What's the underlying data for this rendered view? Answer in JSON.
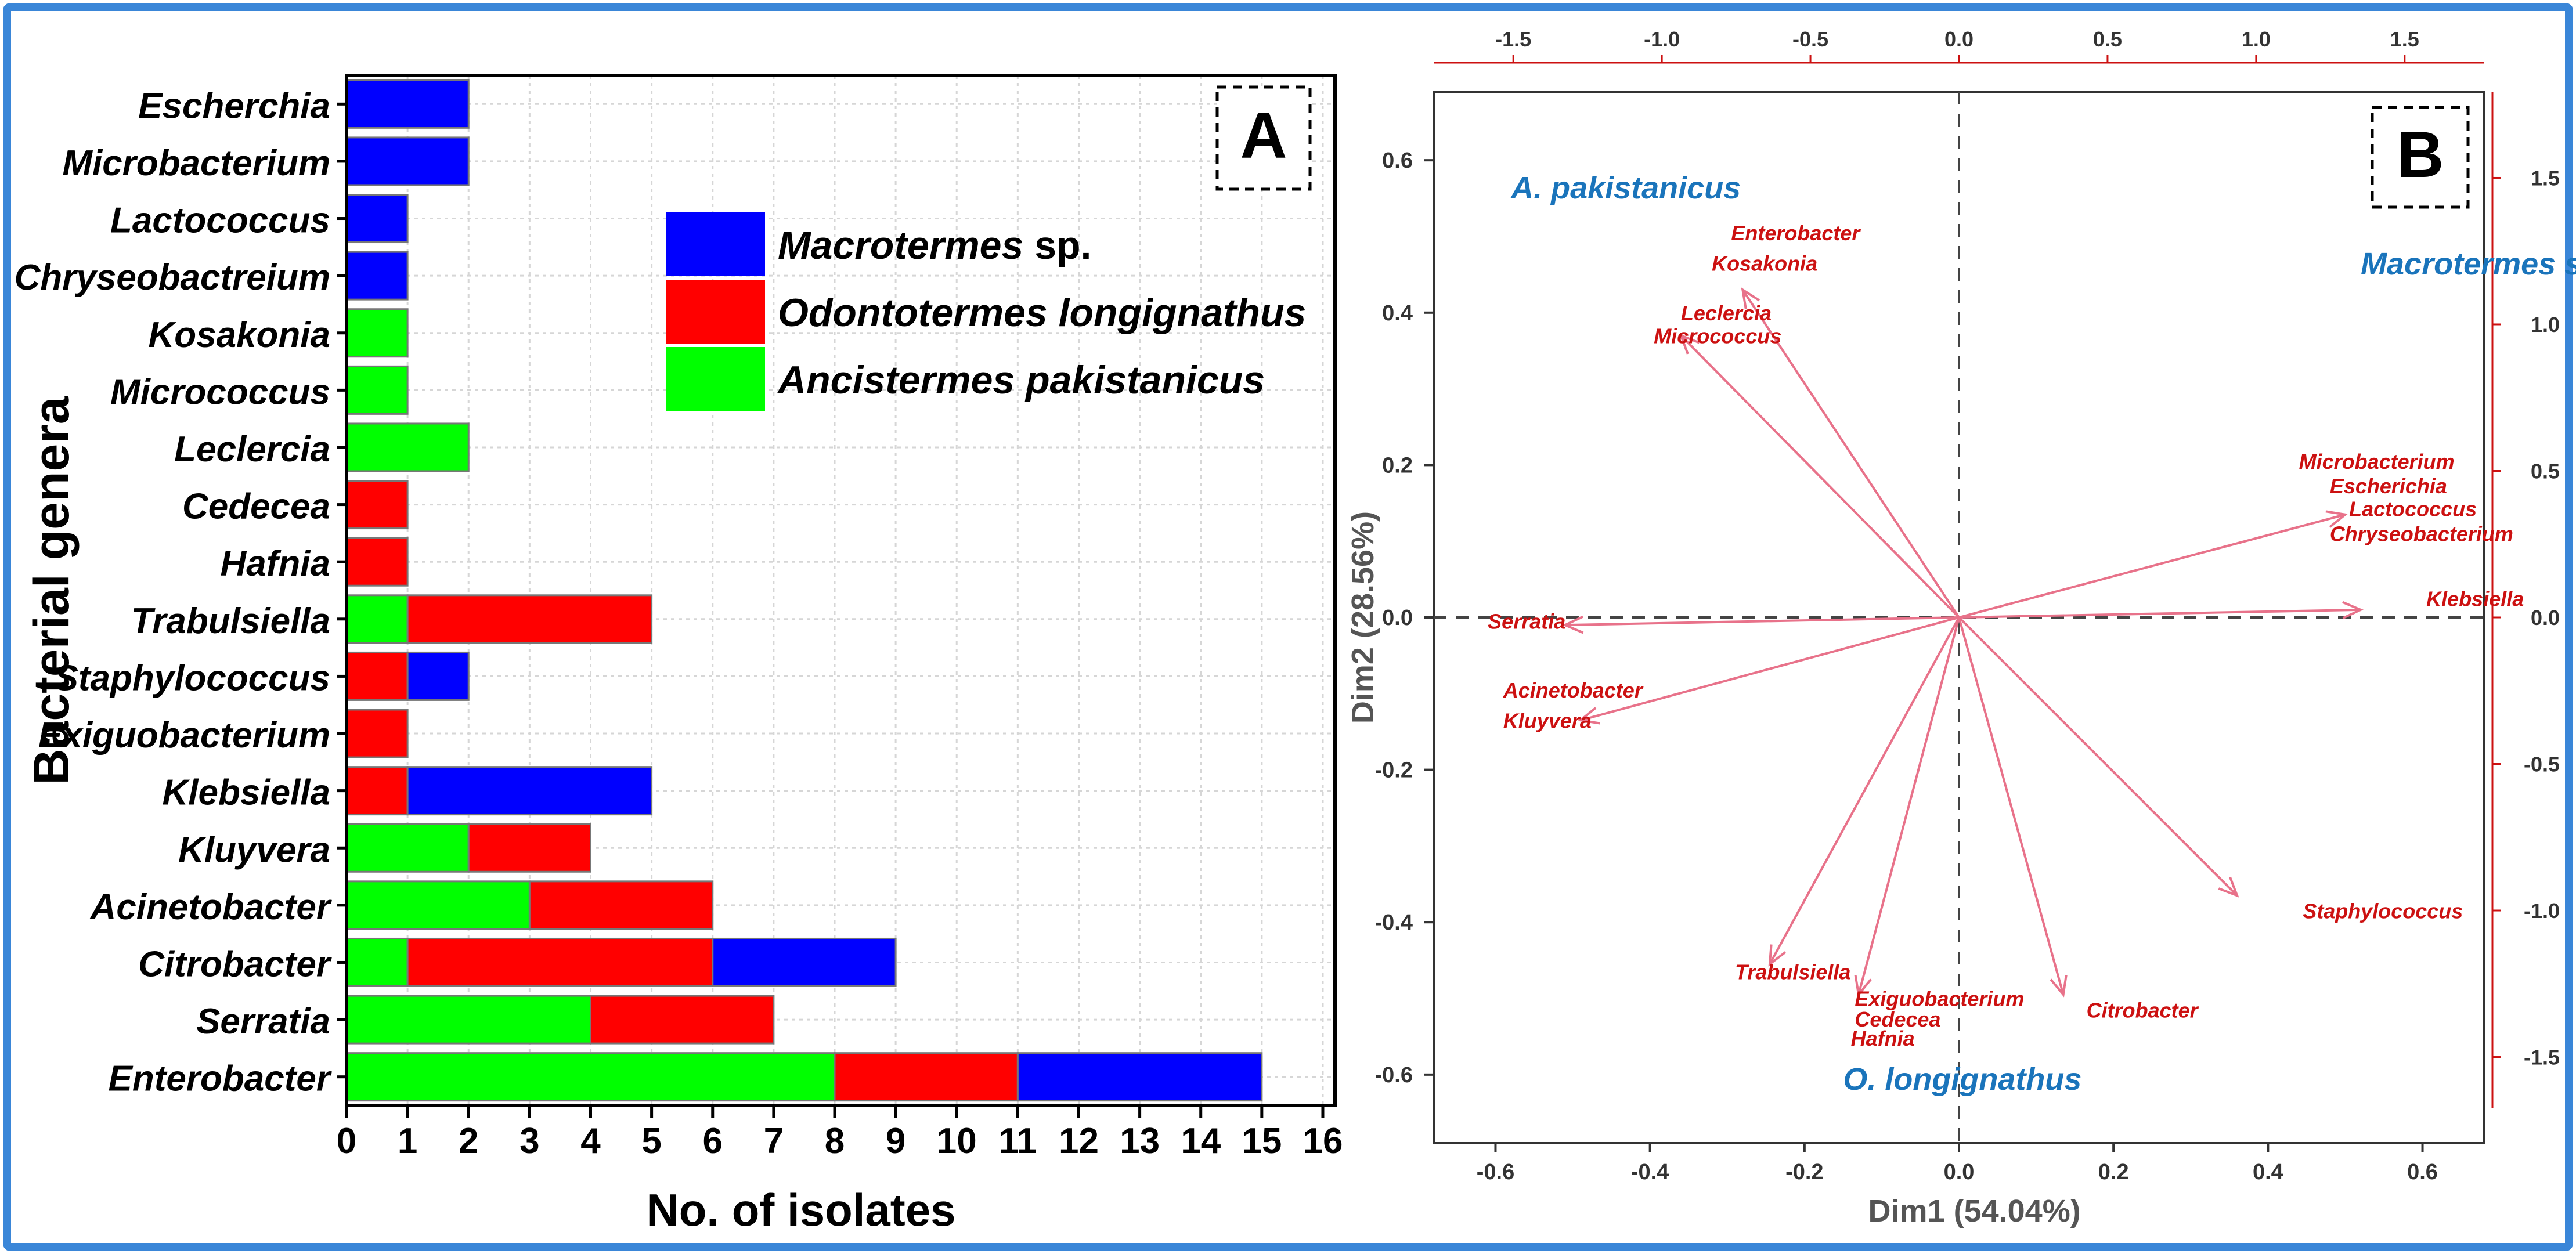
{
  "chart_data": [
    {
      "panel": "A",
      "type": "bar",
      "orientation": "horizontal",
      "stacked": true,
      "ylabel": "Bacterial genera",
      "xlabel": "No. of isolates",
      "xlim": [
        0,
        16.2
      ],
      "xticks": [
        0,
        1,
        2,
        3,
        4,
        5,
        6,
        7,
        8,
        9,
        10,
        11,
        12,
        13,
        14,
        15,
        16
      ],
      "grid": true,
      "legend_position": "top-right",
      "legend": [
        {
          "label": "Macrotermes",
          "suffix": " sp.",
          "color": "#0000ff"
        },
        {
          "label": "Odontotermes longignathus",
          "suffix": "",
          "color": "#ff0000"
        },
        {
          "label": "Ancistermes pakistanicus",
          "suffix": "",
          "color": "#00ff00"
        }
      ],
      "colors": {
        "macrotermes": "#0000ff",
        "odontotermes": "#ff0000",
        "ancistermes": "#00ff00"
      },
      "categories": [
        "Escherchia",
        "Microbacterium",
        "Lactococcus",
        "Chryseobactreium",
        "Kosakonia",
        "Micrococcus",
        "Leclercia",
        "Cedecea",
        "Hafnia",
        "Trabulsiella",
        "Staphylococcus",
        "Exiguobacterium",
        "Klebsiella",
        "Kluyvera",
        "Acinetobacter",
        "Citrobacter",
        "Serratia",
        "Enterobacter"
      ],
      "stacks": [
        [
          {
            "series": "macrotermes",
            "value": 2
          }
        ],
        [
          {
            "series": "macrotermes",
            "value": 2
          }
        ],
        [
          {
            "series": "macrotermes",
            "value": 1
          }
        ],
        [
          {
            "series": "macrotermes",
            "value": 1
          }
        ],
        [
          {
            "series": "ancistermes",
            "value": 1
          }
        ],
        [
          {
            "series": "ancistermes",
            "value": 1
          }
        ],
        [
          {
            "series": "ancistermes",
            "value": 2
          }
        ],
        [
          {
            "series": "odontotermes",
            "value": 1
          }
        ],
        [
          {
            "series": "odontotermes",
            "value": 1
          }
        ],
        [
          {
            "series": "ancistermes",
            "value": 1
          },
          {
            "series": "odontotermes",
            "value": 4
          }
        ],
        [
          {
            "series": "odontotermes",
            "value": 1
          },
          {
            "series": "macrotermes",
            "value": 1
          }
        ],
        [
          {
            "series": "odontotermes",
            "value": 1
          }
        ],
        [
          {
            "series": "odontotermes",
            "value": 1
          },
          {
            "series": "macrotermes",
            "value": 4
          }
        ],
        [
          {
            "series": "ancistermes",
            "value": 2
          },
          {
            "series": "odontotermes",
            "value": 2
          }
        ],
        [
          {
            "series": "ancistermes",
            "value": 3
          },
          {
            "series": "odontotermes",
            "value": 3
          }
        ],
        [
          {
            "series": "ancistermes",
            "value": 1
          },
          {
            "series": "odontotermes",
            "value": 5
          },
          {
            "series": "macrotermes",
            "value": 3
          }
        ],
        [
          {
            "series": "ancistermes",
            "value": 4
          },
          {
            "series": "odontotermes",
            "value": 3
          }
        ],
        [
          {
            "series": "ancistermes",
            "value": 8
          },
          {
            "series": "odontotermes",
            "value": 3
          },
          {
            "series": "macrotermes",
            "value": 4
          }
        ]
      ]
    },
    {
      "panel": "B",
      "type": "scatter",
      "subtype": "biplot",
      "xlabel": "Dim1 (54.04%)",
      "ylabel": "Dim2 (28.56%)",
      "xlim": [
        -0.68,
        0.68
      ],
      "ylim": [
        -0.69,
        0.69
      ],
      "xticks": [
        -0.6,
        -0.4,
        -0.2,
        0.0,
        0.2,
        0.4,
        0.6
      ],
      "yticks": [
        -0.6,
        -0.4,
        -0.2,
        0.0,
        0.2,
        0.4,
        0.6
      ],
      "top_ticks": [
        -1.5,
        -1.0,
        -0.5,
        0.0,
        0.5,
        1.0,
        1.5
      ],
      "right_ticks": [
        -1.5,
        -1.0,
        -0.5,
        0.0,
        0.5,
        1.0,
        1.5
      ],
      "secondary_scale": 2.6,
      "grid": false,
      "reference_lines": "dashed at x = 0 and y = 0",
      "arrow_color": "#e8728a",
      "label_color": "#cc1111",
      "group_color": "#1a74bb",
      "groups": [
        {
          "text": "A. pakistanicus",
          "x": -0.58,
          "y": 0.55
        },
        {
          "text": "Macrotermes sp.",
          "x": 0.52,
          "y": 0.45
        },
        {
          "text": "O. longignathus",
          "x": -0.15,
          "y": -0.62
        }
      ],
      "arrows": [
        {
          "x": -0.28,
          "y": 0.43
        },
        {
          "x": -0.36,
          "y": 0.37
        },
        {
          "x": 0.5,
          "y": 0.135
        },
        {
          "x": 0.52,
          "y": 0.01
        },
        {
          "x": -0.51,
          "y": -0.01
        },
        {
          "x": -0.49,
          "y": -0.135
        },
        {
          "x": -0.245,
          "y": -0.455
        },
        {
          "x": -0.13,
          "y": -0.495
        },
        {
          "x": 0.135,
          "y": -0.495
        },
        {
          "x": 0.36,
          "y": -0.365
        }
      ],
      "labels": [
        {
          "text": "Enterobacter",
          "x": -0.295,
          "y": 0.495
        },
        {
          "text": "Kosakonia",
          "x": -0.32,
          "y": 0.455
        },
        {
          "text": "Leclercia",
          "x": -0.36,
          "y": 0.39
        },
        {
          "text": "Micrococcus",
          "x": -0.395,
          "y": 0.36
        },
        {
          "text": "Microbacterium",
          "x": 0.44,
          "y": 0.195
        },
        {
          "text": "Escherichia",
          "x": 0.48,
          "y": 0.163
        },
        {
          "text": "Lactococcus",
          "x": 0.505,
          "y": 0.133
        },
        {
          "text": "Chryseobacterium",
          "x": 0.48,
          "y": 0.1
        },
        {
          "text": "Klebsiella",
          "x": 0.605,
          "y": 0.015
        },
        {
          "text": "Serratia",
          "x": -0.61,
          "y": -0.015
        },
        {
          "text": "Acinetobacter",
          "x": -0.59,
          "y": -0.105
        },
        {
          "text": "Kluyvera",
          "x": -0.59,
          "y": -0.145
        },
        {
          "text": "Trabulsiella",
          "x": -0.29,
          "y": -0.475
        },
        {
          "text": "Exiguobacterium",
          "x": -0.135,
          "y": -0.51
        },
        {
          "text": "Cedecea",
          "x": -0.135,
          "y": -0.537
        },
        {
          "text": "Hafnia",
          "x": -0.14,
          "y": -0.562
        },
        {
          "text": "Citrobacter",
          "x": 0.165,
          "y": -0.525
        },
        {
          "text": "Staphylococcus",
          "x": 0.445,
          "y": -0.395
        }
      ]
    }
  ]
}
